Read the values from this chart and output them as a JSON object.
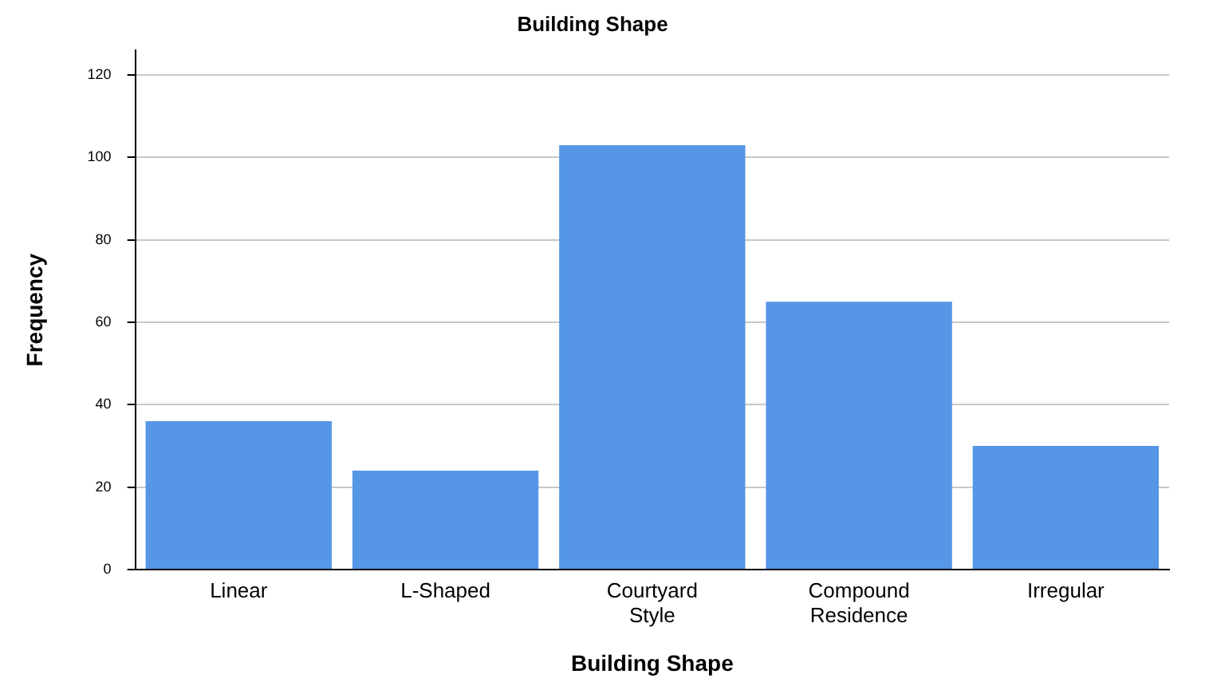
{
  "chart_data": {
    "type": "bar",
    "title": "Building Shape",
    "xlabel": "Building Shape",
    "ylabel": "Frequency",
    "categories": [
      "Linear",
      "L-Shaped",
      "Courtyard Style",
      "Compound Residence",
      "Irregular"
    ],
    "values": [
      36,
      24,
      103,
      65,
      30
    ],
    "color": "#5596e6",
    "ylim": [
      0,
      126
    ],
    "yticks": [
      0,
      20,
      40,
      60,
      80,
      100,
      120
    ],
    "grid": "y"
  }
}
